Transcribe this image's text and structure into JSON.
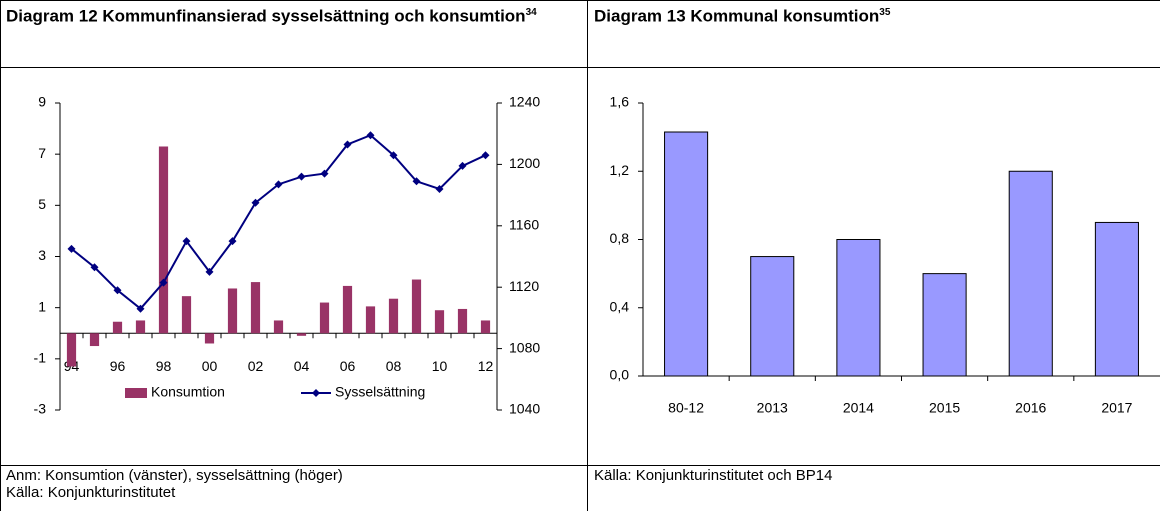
{
  "chart_data": [
    {
      "type": "bar_line",
      "title": "Diagram 12 Kommunfinansierad sysselsättning och konsumtion",
      "title_ref": "34",
      "categories": [
        "94",
        null,
        "96",
        null,
        "98",
        null,
        "00",
        null,
        "02",
        null,
        "04",
        null,
        "06",
        null,
        "08",
        null,
        "10",
        null,
        "12"
      ],
      "series": [
        {
          "name": "Konsumtion",
          "type": "bar",
          "color": "#993366",
          "values": [
            -1.3,
            -0.5,
            0.45,
            0.5,
            7.3,
            1.45,
            -0.4,
            1.75,
            2.0,
            0.5,
            -0.1,
            1.2,
            1.85,
            1.05,
            1.35,
            2.1,
            0.9,
            0.95,
            0.5
          ]
        },
        {
          "name": "Sysselsättning",
          "type": "line",
          "axis": "y2",
          "color": "#000080",
          "values": [
            1145,
            1133,
            1118,
            1106,
            1123,
            1150,
            1130,
            1150,
            1175,
            1187,
            1192,
            1194,
            1213,
            1219,
            1206,
            1189,
            1184,
            1199,
            1206
          ]
        }
      ],
      "ylim": [
        -3,
        9
      ],
      "yticks": [
        -3,
        -1,
        1,
        3,
        5,
        7,
        9
      ],
      "y2lim": [
        1040,
        1240
      ],
      "y2ticks": [
        1040,
        1080,
        1120,
        1160,
        1200,
        1240
      ],
      "legend": "bottom",
      "notes": [
        "Anm: Konsumtion (vänster), sysselsättning (höger)",
        "Källa: Konjunkturinstitutet"
      ]
    },
    {
      "type": "bar",
      "title": "Diagram 13 Kommunal konsumtion",
      "title_ref": "35",
      "categories": [
        "80-12",
        "2013",
        "2014",
        "2015",
        "2016",
        "2017"
      ],
      "series": [
        {
          "type": "bar",
          "color": "#9999ff",
          "values": [
            1.43,
            0.7,
            0.8,
            0.6,
            1.2,
            0.9
          ]
        }
      ],
      "ylim": [
        0,
        1.6
      ],
      "yticks": [
        {
          "value": 0,
          "label": "0,0"
        },
        {
          "value": 0.4,
          "label": "0,4"
        },
        {
          "value": 0.8,
          "label": "0,8"
        },
        {
          "value": 1.2,
          "label": "1,2"
        },
        {
          "value": 1.6,
          "label": "1,6"
        }
      ],
      "notes": [
        "Källa: Konjunkturinstitutet och BP14"
      ]
    }
  ]
}
